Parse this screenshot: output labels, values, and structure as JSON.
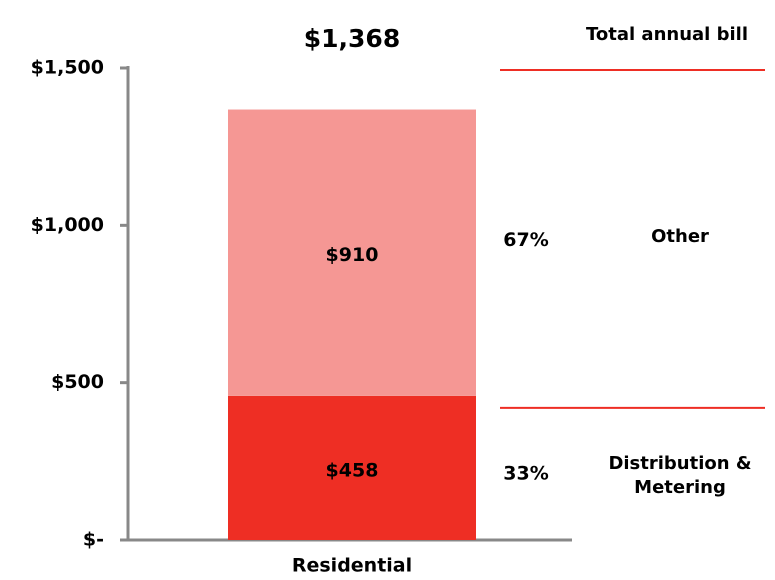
{
  "chart_data": {
    "type": "stacked_bar",
    "categories": [
      "Residential"
    ],
    "series": [
      {
        "name": "Distribution & Metering",
        "color": "#ee2e24",
        "values": [
          458
        ],
        "value_labels": [
          "$458"
        ],
        "share": [
          33
        ],
        "share_labels": [
          "33%"
        ]
      },
      {
        "name": "Other",
        "color": "#f59794",
        "values": [
          910
        ],
        "value_labels": [
          "$910"
        ],
        "share": [
          67
        ],
        "share_labels": [
          "67%"
        ]
      }
    ],
    "total_name": "Total annual bill",
    "totals": [
      1368
    ],
    "total_labels": [
      "$1,368"
    ],
    "ylim": [
      0,
      1500
    ],
    "yticks": [
      {
        "value": 0,
        "label": "$-"
      },
      {
        "value": 500,
        "label": "$500"
      },
      {
        "value": 1000,
        "label": "$1,000"
      },
      {
        "value": 1500,
        "label": "$1,500"
      }
    ],
    "grid": false
  }
}
